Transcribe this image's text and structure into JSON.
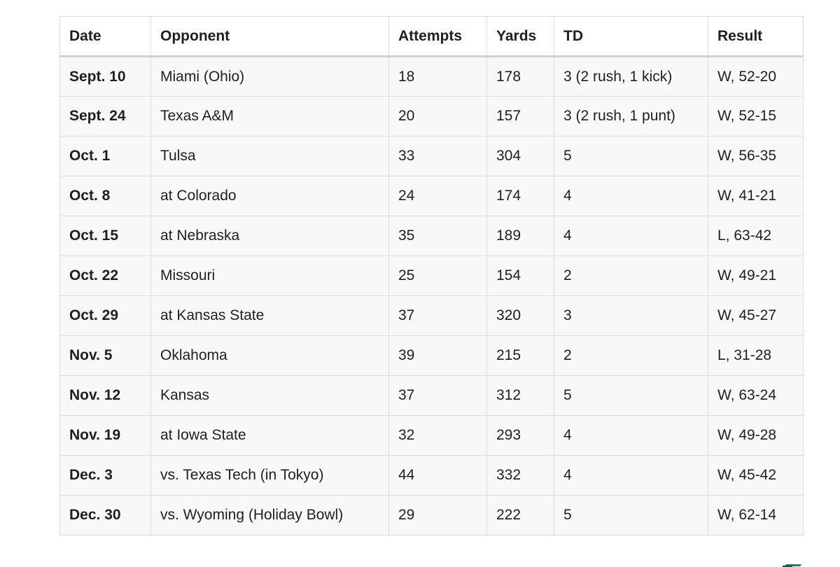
{
  "table": {
    "headers": {
      "date": "Date",
      "opponent": "Opponent",
      "attempts": "Attempts",
      "yards": "Yards",
      "td": "TD",
      "result": "Result"
    },
    "rows": [
      {
        "date": "Sept. 10",
        "opponent": "Miami (Ohio)",
        "attempts": "18",
        "yards": "178",
        "td": "3 (2 rush, 1 kick)",
        "result": "W, 52-20"
      },
      {
        "date": "Sept. 24",
        "opponent": "Texas A&M",
        "attempts": "20",
        "yards": "157",
        "td": "3 (2 rush, 1 punt)",
        "result": "W, 52-15"
      },
      {
        "date": "Oct. 1",
        "opponent": "Tulsa",
        "attempts": "33",
        "yards": "304",
        "td": "5",
        "result": "W, 56-35"
      },
      {
        "date": "Oct. 8",
        "opponent": "at Colorado",
        "attempts": "24",
        "yards": "174",
        "td": "4",
        "result": "W, 41-21"
      },
      {
        "date": "Oct. 15",
        "opponent": "at Nebraska",
        "attempts": "35",
        "yards": "189",
        "td": "4",
        "result": "L, 63-42"
      },
      {
        "date": "Oct. 22",
        "opponent": "Missouri",
        "attempts": "25",
        "yards": "154",
        "td": "2",
        "result": "W, 49-21"
      },
      {
        "date": "Oct. 29",
        "opponent": "at Kansas State",
        "attempts": "37",
        "yards": "320",
        "td": "3",
        "result": "W, 45-27"
      },
      {
        "date": "Nov. 5",
        "opponent": "Oklahoma",
        "attempts": "39",
        "yards": "215",
        "td": "2",
        "result": "L, 31-28"
      },
      {
        "date": "Nov. 12",
        "opponent": "Kansas",
        "attempts": "37",
        "yards": "312",
        "td": "5",
        "result": "W, 63-24"
      },
      {
        "date": "Nov. 19",
        "opponent": "at Iowa State",
        "attempts": "32",
        "yards": "293",
        "td": "4",
        "result": "W, 49-28"
      },
      {
        "date": "Dec. 3",
        "opponent": "vs. Texas Tech (in Tokyo)",
        "attempts": "44",
        "yards": "332",
        "td": "4",
        "result": "W, 45-42"
      },
      {
        "date": "Dec. 30",
        "opponent": "vs. Wyoming (Holiday Bowl)",
        "attempts": "29",
        "yards": "222",
        "td": "5",
        "result": "W, 62-14"
      }
    ]
  },
  "colors": {
    "border": "#dcdcdc",
    "row_background": "#f8f8f8",
    "header_background": "#ffffff",
    "text": "#1f1f1f",
    "corner_mark_green": "#2e7d55"
  },
  "icons": {
    "corner_mark": "partial-logo-icon"
  }
}
